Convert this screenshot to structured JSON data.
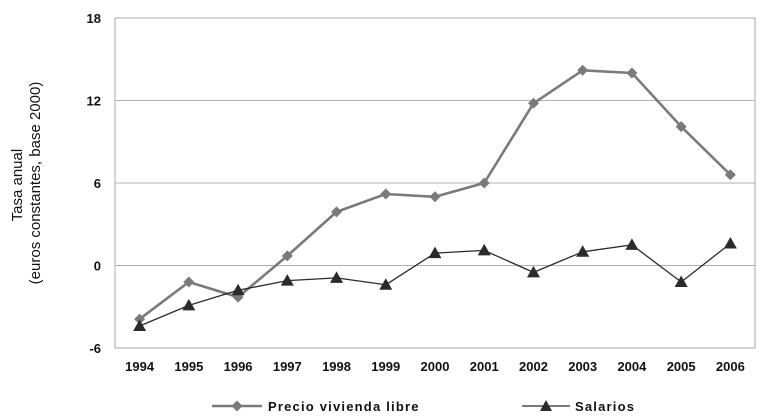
{
  "chart_data": {
    "type": "line",
    "title": "",
    "xlabel": "",
    "ylabel_lines": [
      "Tasa anual",
      "(euros constantes, base 2000)"
    ],
    "x": [
      "1994",
      "1995",
      "1996",
      "1997",
      "1998",
      "1999",
      "2000",
      "2001",
      "2002",
      "2003",
      "2004",
      "2005",
      "2006"
    ],
    "yticks": [
      "18",
      "12",
      "6",
      "0",
      "-6"
    ],
    "ylim": [
      -6,
      18
    ],
    "legend_position": "bottom",
    "series": [
      {
        "name": "Precio vivienda libre",
        "marker": "diamond",
        "color": "#7a7a7a",
        "values": [
          -3.9,
          -1.2,
          -2.3,
          0.7,
          3.9,
          5.2,
          5.0,
          6.0,
          11.8,
          14.2,
          14.0,
          10.1,
          6.6
        ]
      },
      {
        "name": "Salarios",
        "marker": "triangle",
        "color": "#2b2b2b",
        "values": [
          -4.4,
          -2.9,
          -1.8,
          -1.1,
          -0.9,
          -1.4,
          0.9,
          1.1,
          -0.5,
          1.0,
          1.5,
          -1.2,
          1.6
        ]
      }
    ]
  }
}
